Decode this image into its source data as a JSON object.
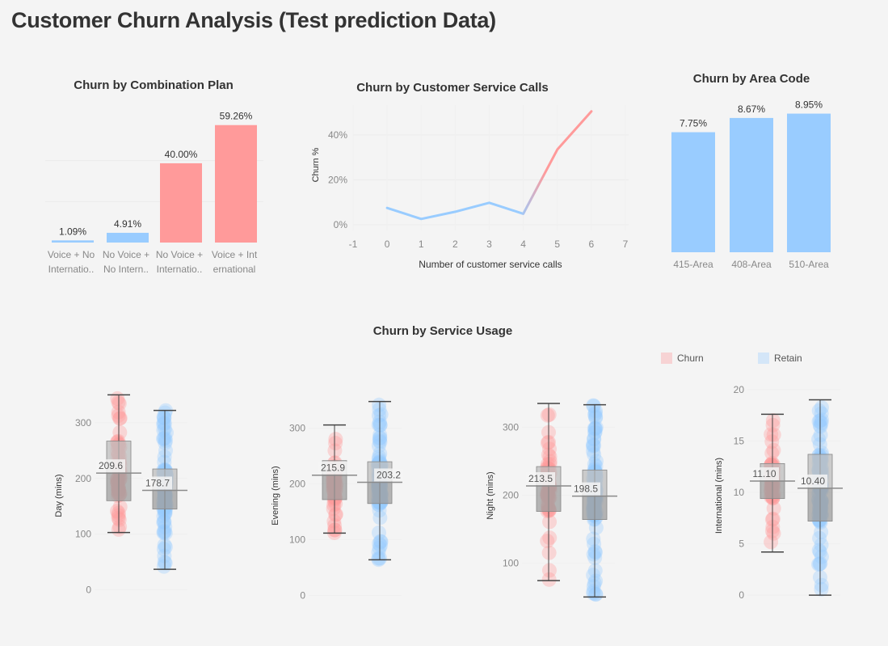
{
  "title": "Customer Churn Analysis (Test prediction Data)",
  "colors": {
    "churn": "#ff9a9a",
    "retain": "#99ccff",
    "box": "#9e9e9e",
    "churn_light": "#f7d3d4",
    "retain_light": "#d4e6f8"
  },
  "titles": {
    "plan": "Churn by Combination Plan",
    "calls": "Churn by Customer Service Calls",
    "area": "Churn by Area Code",
    "usage": "Churn by Service Usage"
  },
  "legend": {
    "churn": "Churn",
    "retain": "Retain"
  },
  "chart_data": [
    {
      "id": "plan",
      "type": "bar",
      "title": "Churn by Combination Plan",
      "categories": [
        [
          "Voice + No",
          "Internatio.."
        ],
        [
          "No Voice +",
          "No Intern.."
        ],
        [
          "No Voice +",
          "Internatio.."
        ],
        [
          "Voice + Int",
          "ernational"
        ]
      ],
      "values": [
        1.09,
        4.91,
        40.0,
        59.26
      ],
      "labels": [
        "1.09%",
        "4.91%",
        "40.00%",
        "59.26%"
      ],
      "colors": [
        "retain",
        "retain",
        "churn",
        "churn"
      ],
      "ylim": [
        0,
        62
      ]
    },
    {
      "id": "calls",
      "type": "line",
      "title": "Churn by Customer Service Calls",
      "xlabel": "Number of customer service calls",
      "ylabel": "Churn %",
      "x": [
        0,
        1,
        2,
        3,
        4,
        5,
        6
      ],
      "y": [
        7.5,
        2.6,
        5.8,
        9.8,
        4.9,
        33.5,
        50.5
      ],
      "x_ticks": [
        "-1",
        "0",
        "1",
        "2",
        "3",
        "4",
        "5",
        "6",
        "7"
      ],
      "y_ticks": [
        "0%",
        "20%",
        "40%"
      ],
      "xlim": [
        -1,
        7
      ],
      "ylim": [
        0,
        54
      ]
    },
    {
      "id": "area",
      "type": "bar",
      "title": "Churn by Area Code",
      "categories": [
        "415-Area",
        "408-Area",
        "510-Area"
      ],
      "values": [
        7.75,
        8.67,
        8.95
      ],
      "labels": [
        "7.75%",
        "8.67%",
        "8.95%"
      ],
      "ylim": [
        0,
        9.5
      ]
    },
    {
      "id": "day",
      "type": "box",
      "ylabel": "Day (mins)",
      "y_ticks": [
        "0",
        "100",
        "200",
        "300"
      ],
      "tick_values": [
        0,
        100,
        200,
        300
      ],
      "ylim": [
        -15,
        365
      ],
      "groups": [
        {
          "name": "churn",
          "min": 103,
          "q1": 160,
          "median": 209.6,
          "q3": 267,
          "max": 350,
          "label": "209.6"
        },
        {
          "name": "retain",
          "min": 37,
          "q1": 145,
          "median": 178.7,
          "q3": 217,
          "max": 322,
          "label": "178.7"
        }
      ]
    },
    {
      "id": "evening",
      "type": "box",
      "ylabel": "Evening (mins)",
      "y_ticks": [
        "0",
        "100",
        "200",
        "300"
      ],
      "tick_values": [
        0,
        100,
        200,
        300
      ],
      "ylim": [
        -5,
        375
      ],
      "groups": [
        {
          "name": "churn",
          "min": 112,
          "q1": 172,
          "median": 215.9,
          "q3": 242,
          "max": 306,
          "label": "215.9"
        },
        {
          "name": "retain",
          "min": 64,
          "q1": 165,
          "median": 203.2,
          "q3": 240,
          "max": 348,
          "label": "203.2"
        }
      ]
    },
    {
      "id": "night",
      "type": "box",
      "ylabel": "Night (mins)",
      "y_ticks": [
        "100",
        "200",
        "300"
      ],
      "tick_values": [
        100,
        200,
        300
      ],
      "ylim": [
        48,
        360
      ],
      "groups": [
        {
          "name": "churn",
          "min": 74,
          "q1": 176,
          "median": 213.5,
          "q3": 242,
          "max": 335,
          "label": "213.5"
        },
        {
          "name": "retain",
          "min": 50,
          "q1": 164,
          "median": 198.5,
          "q3": 237,
          "max": 333,
          "label": "198.5"
        }
      ]
    },
    {
      "id": "international",
      "type": "box",
      "ylabel": "International (mins)",
      "y_ticks": [
        "0",
        "5",
        "10",
        "15",
        "20"
      ],
      "tick_values": [
        0,
        5,
        10,
        15,
        20
      ],
      "ylim": [
        -0.3,
        20.3
      ],
      "groups": [
        {
          "name": "churn",
          "min": 4.2,
          "q1": 9.4,
          "median": 11.1,
          "q3": 12.8,
          "max": 17.6,
          "label": "11.10"
        },
        {
          "name": "retain",
          "min": 0,
          "q1": 7.2,
          "median": 10.4,
          "q3": 13.7,
          "max": 19,
          "label": "10.40"
        }
      ]
    }
  ]
}
